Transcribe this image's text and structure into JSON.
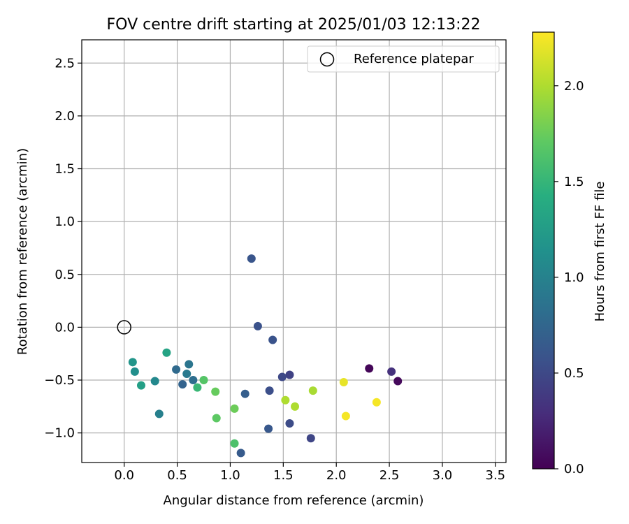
{
  "chart_data": {
    "type": "scatter",
    "title": "FOV centre drift starting at 2025/01/03 12:13:22",
    "xlabel": "Angular distance from reference (arcmin)",
    "ylabel": "Rotation from reference (arcmin)",
    "xlim": [
      -0.4,
      3.6
    ],
    "ylim": [
      -1.28,
      2.72
    ],
    "xticks": [
      0.0,
      0.5,
      1.0,
      1.5,
      2.0,
      2.5,
      3.0,
      3.5
    ],
    "xtick_labels": [
      "0.0",
      "0.5",
      "1.0",
      "1.5",
      "2.0",
      "2.5",
      "3.0",
      "3.5"
    ],
    "yticks": [
      -1.0,
      -0.5,
      0.0,
      0.5,
      1.0,
      1.5,
      2.0,
      2.5
    ],
    "ytick_labels": [
      "−1.0",
      "−0.5",
      "0.0",
      "0.5",
      "1.0",
      "1.5",
      "2.0",
      "2.5"
    ],
    "grid": true,
    "legend": {
      "position": "top-right",
      "entries": [
        "Reference platepar"
      ]
    },
    "reference_point": {
      "label": "Reference platepar",
      "x": 0.0,
      "y": 0.0
    },
    "colorbar": {
      "label": "Hours from first FF file",
      "colormap": "viridis",
      "range": [
        0.0,
        2.28
      ],
      "ticks": [
        0.0,
        0.5,
        1.0,
        1.5,
        2.0
      ],
      "tick_labels": [
        "0.0",
        "0.5",
        "1.0",
        "1.5",
        "2.0"
      ]
    },
    "points": [
      {
        "x": 2.31,
        "y": -0.39,
        "t": 0.03
      },
      {
        "x": 2.58,
        "y": -0.51,
        "t": 0.05
      },
      {
        "x": 2.52,
        "y": -0.42,
        "t": 0.32
      },
      {
        "x": 1.56,
        "y": -0.45,
        "t": 0.45
      },
      {
        "x": 1.76,
        "y": -1.05,
        "t": 0.48
      },
      {
        "x": 1.49,
        "y": -0.47,
        "t": 0.5
      },
      {
        "x": 1.56,
        "y": -0.91,
        "t": 0.52
      },
      {
        "x": 1.37,
        "y": -0.6,
        "t": 0.55
      },
      {
        "x": 1.26,
        "y": 0.01,
        "t": 0.57
      },
      {
        "x": 1.4,
        "y": -0.12,
        "t": 0.58
      },
      {
        "x": 1.2,
        "y": 0.65,
        "t": 0.6
      },
      {
        "x": 1.36,
        "y": -0.96,
        "t": 0.62
      },
      {
        "x": 1.1,
        "y": -1.19,
        "t": 0.65
      },
      {
        "x": 1.14,
        "y": -0.63,
        "t": 0.68
      },
      {
        "x": 0.55,
        "y": -0.54,
        "t": 0.72
      },
      {
        "x": 0.49,
        "y": -0.4,
        "t": 0.78
      },
      {
        "x": 0.65,
        "y": -0.5,
        "t": 0.82
      },
      {
        "x": 0.61,
        "y": -0.35,
        "t": 0.88
      },
      {
        "x": 0.59,
        "y": -0.44,
        "t": 0.92
      },
      {
        "x": 0.33,
        "y": -0.82,
        "t": 0.98
      },
      {
        "x": 0.29,
        "y": -0.51,
        "t": 1.06
      },
      {
        "x": 0.1,
        "y": -0.42,
        "t": 1.12
      },
      {
        "x": 0.08,
        "y": -0.33,
        "t": 1.18
      },
      {
        "x": 0.16,
        "y": -0.55,
        "t": 1.28
      },
      {
        "x": 0.4,
        "y": -0.24,
        "t": 1.32
      },
      {
        "x": 0.69,
        "y": -0.57,
        "t": 1.52
      },
      {
        "x": 0.75,
        "y": -0.5,
        "t": 1.66
      },
      {
        "x": 0.87,
        "y": -0.86,
        "t": 1.7
      },
      {
        "x": 0.86,
        "y": -0.61,
        "t": 1.74
      },
      {
        "x": 1.04,
        "y": -0.77,
        "t": 1.76
      },
      {
        "x": 1.04,
        "y": -1.1,
        "t": 1.62
      },
      {
        "x": 1.52,
        "y": -0.69,
        "t": 2.0
      },
      {
        "x": 1.61,
        "y": -0.75,
        "t": 2.0
      },
      {
        "x": 1.78,
        "y": -0.6,
        "t": 1.98
      },
      {
        "x": 2.07,
        "y": -0.52,
        "t": 2.2
      },
      {
        "x": 2.09,
        "y": -0.84,
        "t": 2.25
      },
      {
        "x": 2.38,
        "y": -0.71,
        "t": 2.25
      }
    ]
  }
}
